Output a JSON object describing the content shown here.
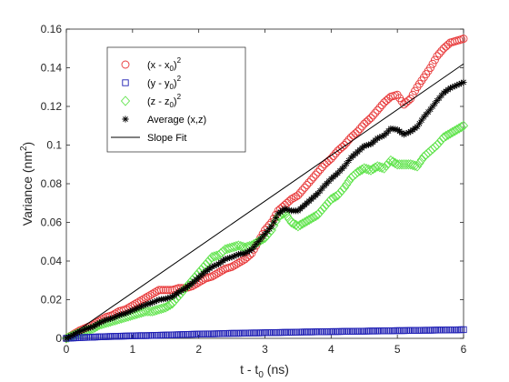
{
  "chart_data": {
    "type": "scatter",
    "xlabel_parts": [
      "t - t",
      "0",
      " (ns)"
    ],
    "ylabel_parts": [
      "Variance (nm",
      "2",
      ")"
    ],
    "xlim": [
      0,
      6
    ],
    "ylim": [
      0,
      0.16
    ],
    "xticks": [
      0,
      1,
      2,
      3,
      4,
      5,
      6
    ],
    "yticks": [
      0,
      0.02,
      0.04,
      0.06,
      0.08,
      0.1,
      0.12,
      0.14,
      0.16
    ],
    "xtick_labels": [
      "0",
      "1",
      "2",
      "3",
      "4",
      "5",
      "6"
    ],
    "ytick_labels": [
      "0",
      "0.02",
      "0.04",
      "0.06",
      "0.08",
      "0.1",
      "0.12",
      "0.14",
      "0.16"
    ],
    "grid": false,
    "legend_position": "top-left",
    "series": [
      {
        "name": "(x - x0)^2",
        "legend_parts": [
          "(x - x",
          "0",
          ")",
          "2"
        ],
        "marker": "circle",
        "color": "#e8393a",
        "x": [
          0,
          0.1,
          0.2,
          0.3,
          0.4,
          0.5,
          0.6,
          0.7,
          0.8,
          0.9,
          1.0,
          1.1,
          1.2,
          1.3,
          1.4,
          1.5,
          1.6,
          1.7,
          1.8,
          1.9,
          2.0,
          2.1,
          2.2,
          2.3,
          2.4,
          2.5,
          2.6,
          2.7,
          2.8,
          2.9,
          3.0,
          3.1,
          3.2,
          3.3,
          3.4,
          3.5,
          3.6,
          3.7,
          3.8,
          3.9,
          4.0,
          4.1,
          4.2,
          4.3,
          4.4,
          4.5,
          4.6,
          4.7,
          4.8,
          4.9,
          5.0,
          5.1,
          5.2,
          5.3,
          5.4,
          5.5,
          5.6,
          5.7,
          5.8,
          5.9,
          6.0
        ],
        "y": [
          0,
          0.002,
          0.004,
          0.0055,
          0.007,
          0.009,
          0.011,
          0.012,
          0.014,
          0.015,
          0.017,
          0.019,
          0.021,
          0.023,
          0.025,
          0.025,
          0.025,
          0.026,
          0.026,
          0.027,
          0.029,
          0.031,
          0.032,
          0.034,
          0.036,
          0.037,
          0.039,
          0.041,
          0.044,
          0.05,
          0.056,
          0.06,
          0.066,
          0.069,
          0.072,
          0.074,
          0.078,
          0.082,
          0.086,
          0.09,
          0.093,
          0.097,
          0.1,
          0.104,
          0.107,
          0.111,
          0.114,
          0.118,
          0.122,
          0.125,
          0.126,
          0.121,
          0.124,
          0.13,
          0.135,
          0.14,
          0.146,
          0.15,
          0.153,
          0.154,
          0.155
        ]
      },
      {
        "name": "(y - y0)^2",
        "legend_parts": [
          "(y - y",
          "0",
          ")",
          "2"
        ],
        "marker": "square",
        "color": "#1f1fb4",
        "x": [
          0,
          0.1,
          0.2,
          0.3,
          0.4,
          0.5,
          0.6,
          0.7,
          0.8,
          0.9,
          1.0,
          1.1,
          1.2,
          1.3,
          1.4,
          1.5,
          1.6,
          1.7,
          1.8,
          1.9,
          2.0,
          2.1,
          2.2,
          2.3,
          2.4,
          2.5,
          2.6,
          2.7,
          2.8,
          2.9,
          3.0,
          3.1,
          3.2,
          3.3,
          3.4,
          3.5,
          3.6,
          3.7,
          3.8,
          3.9,
          4.0,
          4.1,
          4.2,
          4.3,
          4.4,
          4.5,
          4.6,
          4.7,
          4.8,
          4.9,
          5.0,
          5.1,
          5.2,
          5.3,
          5.4,
          5.5,
          5.6,
          5.7,
          5.8,
          5.9,
          6.0
        ],
        "y": [
          0,
          0.0002,
          0.0004,
          0.0005,
          0.0006,
          0.0008,
          0.0009,
          0.001,
          0.0011,
          0.0012,
          0.0013,
          0.0014,
          0.0014,
          0.0015,
          0.0016,
          0.0017,
          0.0018,
          0.0019,
          0.002,
          0.0021,
          0.0022,
          0.0023,
          0.0023,
          0.0024,
          0.0025,
          0.0026,
          0.0026,
          0.0027,
          0.0028,
          0.0028,
          0.0029,
          0.003,
          0.003,
          0.0031,
          0.0031,
          0.0032,
          0.0033,
          0.0033,
          0.0034,
          0.0034,
          0.0035,
          0.0035,
          0.0036,
          0.0036,
          0.0037,
          0.0037,
          0.0038,
          0.0038,
          0.0039,
          0.0039,
          0.004,
          0.004,
          0.0041,
          0.0041,
          0.0042,
          0.0042,
          0.0043,
          0.0043,
          0.0044,
          0.0044,
          0.0045
        ]
      },
      {
        "name": "(z - z0)^2",
        "legend_parts": [
          "(z - z",
          "0",
          ")",
          "2"
        ],
        "marker": "diamond",
        "color": "#5ee34a",
        "x": [
          0,
          0.1,
          0.2,
          0.3,
          0.4,
          0.5,
          0.6,
          0.7,
          0.8,
          0.9,
          1.0,
          1.1,
          1.2,
          1.3,
          1.4,
          1.5,
          1.6,
          1.7,
          1.8,
          1.9,
          2.0,
          2.1,
          2.2,
          2.3,
          2.4,
          2.5,
          2.6,
          2.7,
          2.8,
          2.9,
          3.0,
          3.1,
          3.2,
          3.3,
          3.4,
          3.5,
          3.6,
          3.7,
          3.8,
          3.9,
          4.0,
          4.1,
          4.2,
          4.3,
          4.4,
          4.5,
          4.6,
          4.7,
          4.8,
          4.9,
          5.0,
          5.1,
          5.2,
          5.3,
          5.4,
          5.5,
          5.6,
          5.7,
          5.8,
          5.9,
          6.0
        ],
        "y": [
          0,
          0.0015,
          0.003,
          0.004,
          0.005,
          0.007,
          0.008,
          0.009,
          0.01,
          0.011,
          0.012,
          0.013,
          0.014,
          0.014,
          0.015,
          0.016,
          0.018,
          0.022,
          0.026,
          0.03,
          0.034,
          0.038,
          0.042,
          0.043,
          0.046,
          0.047,
          0.048,
          0.047,
          0.048,
          0.05,
          0.052,
          0.056,
          0.063,
          0.065,
          0.06,
          0.058,
          0.06,
          0.062,
          0.064,
          0.068,
          0.072,
          0.074,
          0.078,
          0.083,
          0.086,
          0.088,
          0.087,
          0.089,
          0.088,
          0.092,
          0.09,
          0.09,
          0.09,
          0.089,
          0.094,
          0.097,
          0.1,
          0.104,
          0.106,
          0.108,
          0.11
        ]
      },
      {
        "name": "Average (x,z)",
        "legend_parts": [
          "Average (x,z)",
          "",
          "",
          ""
        ],
        "marker": "asterisk",
        "color": "#000000",
        "x": [
          0,
          0.1,
          0.2,
          0.3,
          0.4,
          0.5,
          0.6,
          0.7,
          0.8,
          0.9,
          1.0,
          1.1,
          1.2,
          1.3,
          1.4,
          1.5,
          1.6,
          1.7,
          1.8,
          1.9,
          2.0,
          2.1,
          2.2,
          2.3,
          2.4,
          2.5,
          2.6,
          2.7,
          2.8,
          2.9,
          3.0,
          3.1,
          3.2,
          3.3,
          3.4,
          3.5,
          3.6,
          3.7,
          3.8,
          3.9,
          4.0,
          4.1,
          4.2,
          4.3,
          4.4,
          4.5,
          4.6,
          4.7,
          4.8,
          4.9,
          5.0,
          5.1,
          5.2,
          5.3,
          5.4,
          5.5,
          5.6,
          5.7,
          5.8,
          5.9,
          6.0
        ],
        "y": [
          0,
          0.0018,
          0.0035,
          0.005,
          0.006,
          0.008,
          0.0095,
          0.0105,
          0.012,
          0.013,
          0.0145,
          0.016,
          0.0175,
          0.0185,
          0.02,
          0.0205,
          0.0215,
          0.024,
          0.026,
          0.0285,
          0.0315,
          0.0345,
          0.037,
          0.0385,
          0.041,
          0.042,
          0.0435,
          0.044,
          0.046,
          0.05,
          0.054,
          0.058,
          0.0645,
          0.067,
          0.066,
          0.066,
          0.069,
          0.072,
          0.075,
          0.079,
          0.0825,
          0.0855,
          0.089,
          0.0935,
          0.0965,
          0.0995,
          0.1005,
          0.1035,
          0.105,
          0.1085,
          0.108,
          0.1055,
          0.107,
          0.1095,
          0.1145,
          0.1185,
          0.123,
          0.127,
          0.1295,
          0.131,
          0.1325
        ]
      },
      {
        "name": "Slope Fit",
        "legend_parts": [
          "Slope Fit",
          "",
          "",
          ""
        ],
        "marker": "line",
        "color": "#000000",
        "x": [
          0,
          6
        ],
        "y": [
          0,
          0.142
        ]
      }
    ]
  }
}
